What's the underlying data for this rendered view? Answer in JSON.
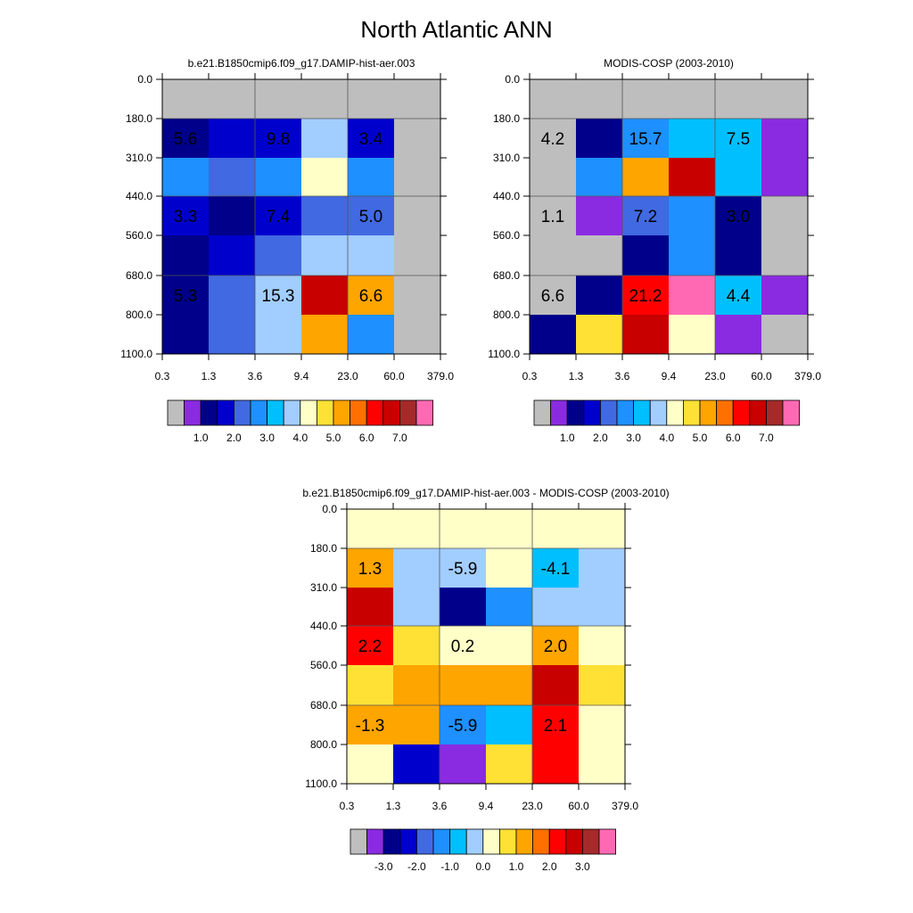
{
  "page": {
    "title": "North Atlantic ANN"
  },
  "chart_data": [
    {
      "type": "heatmap",
      "title": "b.e21.B1850cmip6.f09_g17.DAMIP-hist-aer.003",
      "xticks": [
        "0.3",
        "1.3",
        "3.6",
        "9.4",
        "23.0",
        "60.0",
        "379.0"
      ],
      "yticks": [
        "0.0",
        "180.0",
        "310.0",
        "440.0",
        "560.0",
        "680.0",
        "800.0",
        "1100.0"
      ],
      "cells": [
        [
          0,
          0,
          0,
          0,
          0,
          0
        ],
        [
          2,
          3,
          3,
          7,
          3,
          0
        ],
        [
          5,
          4,
          5,
          8,
          5,
          0
        ],
        [
          3,
          2,
          3,
          4,
          4,
          0
        ],
        [
          2,
          3,
          4,
          7,
          7,
          0
        ],
        [
          2,
          4,
          7,
          13,
          10,
          0
        ],
        [
          2,
          4,
          7,
          10,
          5,
          0
        ]
      ],
      "labels": [
        {
          "v": "5.6",
          "c": 0.5,
          "r": 1.5
        },
        {
          "v": "9.8",
          "c": 2.5,
          "r": 1.5
        },
        {
          "v": "3.4",
          "c": 4.5,
          "r": 1.5
        },
        {
          "v": "3.3",
          "c": 0.5,
          "r": 3.5
        },
        {
          "v": "7.4",
          "c": 2.5,
          "r": 3.5
        },
        {
          "v": "5.0",
          "c": 4.5,
          "r": 3.5
        },
        {
          "v": "5.3",
          "c": 0.5,
          "r": 5.5
        },
        {
          "v": "15.3",
          "c": 2.5,
          "r": 5.5
        },
        {
          "v": "6.6",
          "c": 4.5,
          "r": 5.5
        }
      ],
      "colorbar": {
        "labels": [
          "1.0",
          "2.0",
          "3.0",
          "4.0",
          "5.0",
          "6.0",
          "7.0"
        ]
      }
    },
    {
      "type": "heatmap",
      "title": "MODIS-COSP (2003-2010)",
      "xticks": [
        "0.3",
        "1.3",
        "3.6",
        "9.4",
        "23.0",
        "60.0",
        "379.0"
      ],
      "yticks": [
        "0.0",
        "180.0",
        "310.0",
        "440.0",
        "560.0",
        "680.0",
        "800.0",
        "1100.0"
      ],
      "cells": [
        [
          0,
          0,
          0,
          0,
          0,
          0
        ],
        [
          0,
          2,
          5,
          6,
          6,
          1
        ],
        [
          0,
          5,
          10,
          13,
          6,
          1
        ],
        [
          0,
          1,
          4,
          5,
          2,
          0
        ],
        [
          0,
          0,
          2,
          5,
          2,
          0
        ],
        [
          0,
          2,
          12,
          15,
          6,
          1
        ],
        [
          2,
          9,
          13,
          8,
          1,
          0
        ]
      ],
      "labels": [
        {
          "v": "4.2",
          "c": 0.5,
          "r": 1.5
        },
        {
          "v": "15.7",
          "c": 2.5,
          "r": 1.5
        },
        {
          "v": "7.5",
          "c": 4.5,
          "r": 1.5
        },
        {
          "v": "1.1",
          "c": 0.5,
          "r": 3.5
        },
        {
          "v": "7.2",
          "c": 2.5,
          "r": 3.5
        },
        {
          "v": "3.0",
          "c": 4.5,
          "r": 3.5
        },
        {
          "v": "6.6",
          "c": 0.5,
          "r": 5.5
        },
        {
          "v": "21.2",
          "c": 2.5,
          "r": 5.5
        },
        {
          "v": "4.4",
          "c": 4.5,
          "r": 5.5
        }
      ],
      "colorbar": {
        "labels": [
          "1.0",
          "2.0",
          "3.0",
          "4.0",
          "5.0",
          "6.0",
          "7.0"
        ]
      }
    },
    {
      "type": "heatmap",
      "title": "b.e21.B1850cmip6.f09_g17.DAMIP-hist-aer.003 - MODIS-COSP (2003-2010)",
      "xticks": [
        "0.3",
        "1.3",
        "3.6",
        "9.4",
        "23.0",
        "60.0",
        "379.0"
      ],
      "yticks": [
        "0.0",
        "180.0",
        "310.0",
        "440.0",
        "560.0",
        "680.0",
        "800.0",
        "1100.0"
      ],
      "cells": [
        [
          8,
          8,
          8,
          8,
          8,
          8
        ],
        [
          10,
          7,
          7,
          8,
          6,
          7
        ],
        [
          13,
          7,
          2,
          5,
          7,
          7
        ],
        [
          12,
          9,
          8,
          8,
          10,
          8
        ],
        [
          9,
          10,
          10,
          10,
          13,
          9
        ],
        [
          10,
          10,
          5,
          6,
          12,
          8
        ],
        [
          8,
          3,
          1,
          9,
          12,
          8
        ]
      ],
      "labels": [
        {
          "v": "1.3",
          "c": 0.5,
          "r": 1.5
        },
        {
          "v": "-5.9",
          "c": 2.5,
          "r": 1.5
        },
        {
          "v": "-4.1",
          "c": 4.5,
          "r": 1.5
        },
        {
          "v": "2.2",
          "c": 0.5,
          "r": 3.5
        },
        {
          "v": "0.2",
          "c": 2.5,
          "r": 3.5
        },
        {
          "v": "2.0",
          "c": 4.5,
          "r": 3.5
        },
        {
          "v": "-1.3",
          "c": 0.5,
          "r": 5.5
        },
        {
          "v": "-5.9",
          "c": 2.5,
          "r": 5.5
        },
        {
          "v": "2.1",
          "c": 4.5,
          "r": 5.5
        }
      ],
      "colorbar": {
        "labels": [
          "-3.0",
          "-2.0",
          "-1.0",
          "0.0",
          "1.0",
          "2.0",
          "3.0"
        ]
      }
    }
  ],
  "palette": [
    "#BEBEBE",
    "#8A2BE2",
    "#00008B",
    "#0000CD",
    "#4169E1",
    "#1E90FF",
    "#00BFFF",
    "#A2CDFF",
    "#FFFFC8",
    "#FFE135",
    "#FFA500",
    "#FF7000",
    "#FF0000",
    "#C80000",
    "#A52A2A",
    "#FF69B4"
  ]
}
